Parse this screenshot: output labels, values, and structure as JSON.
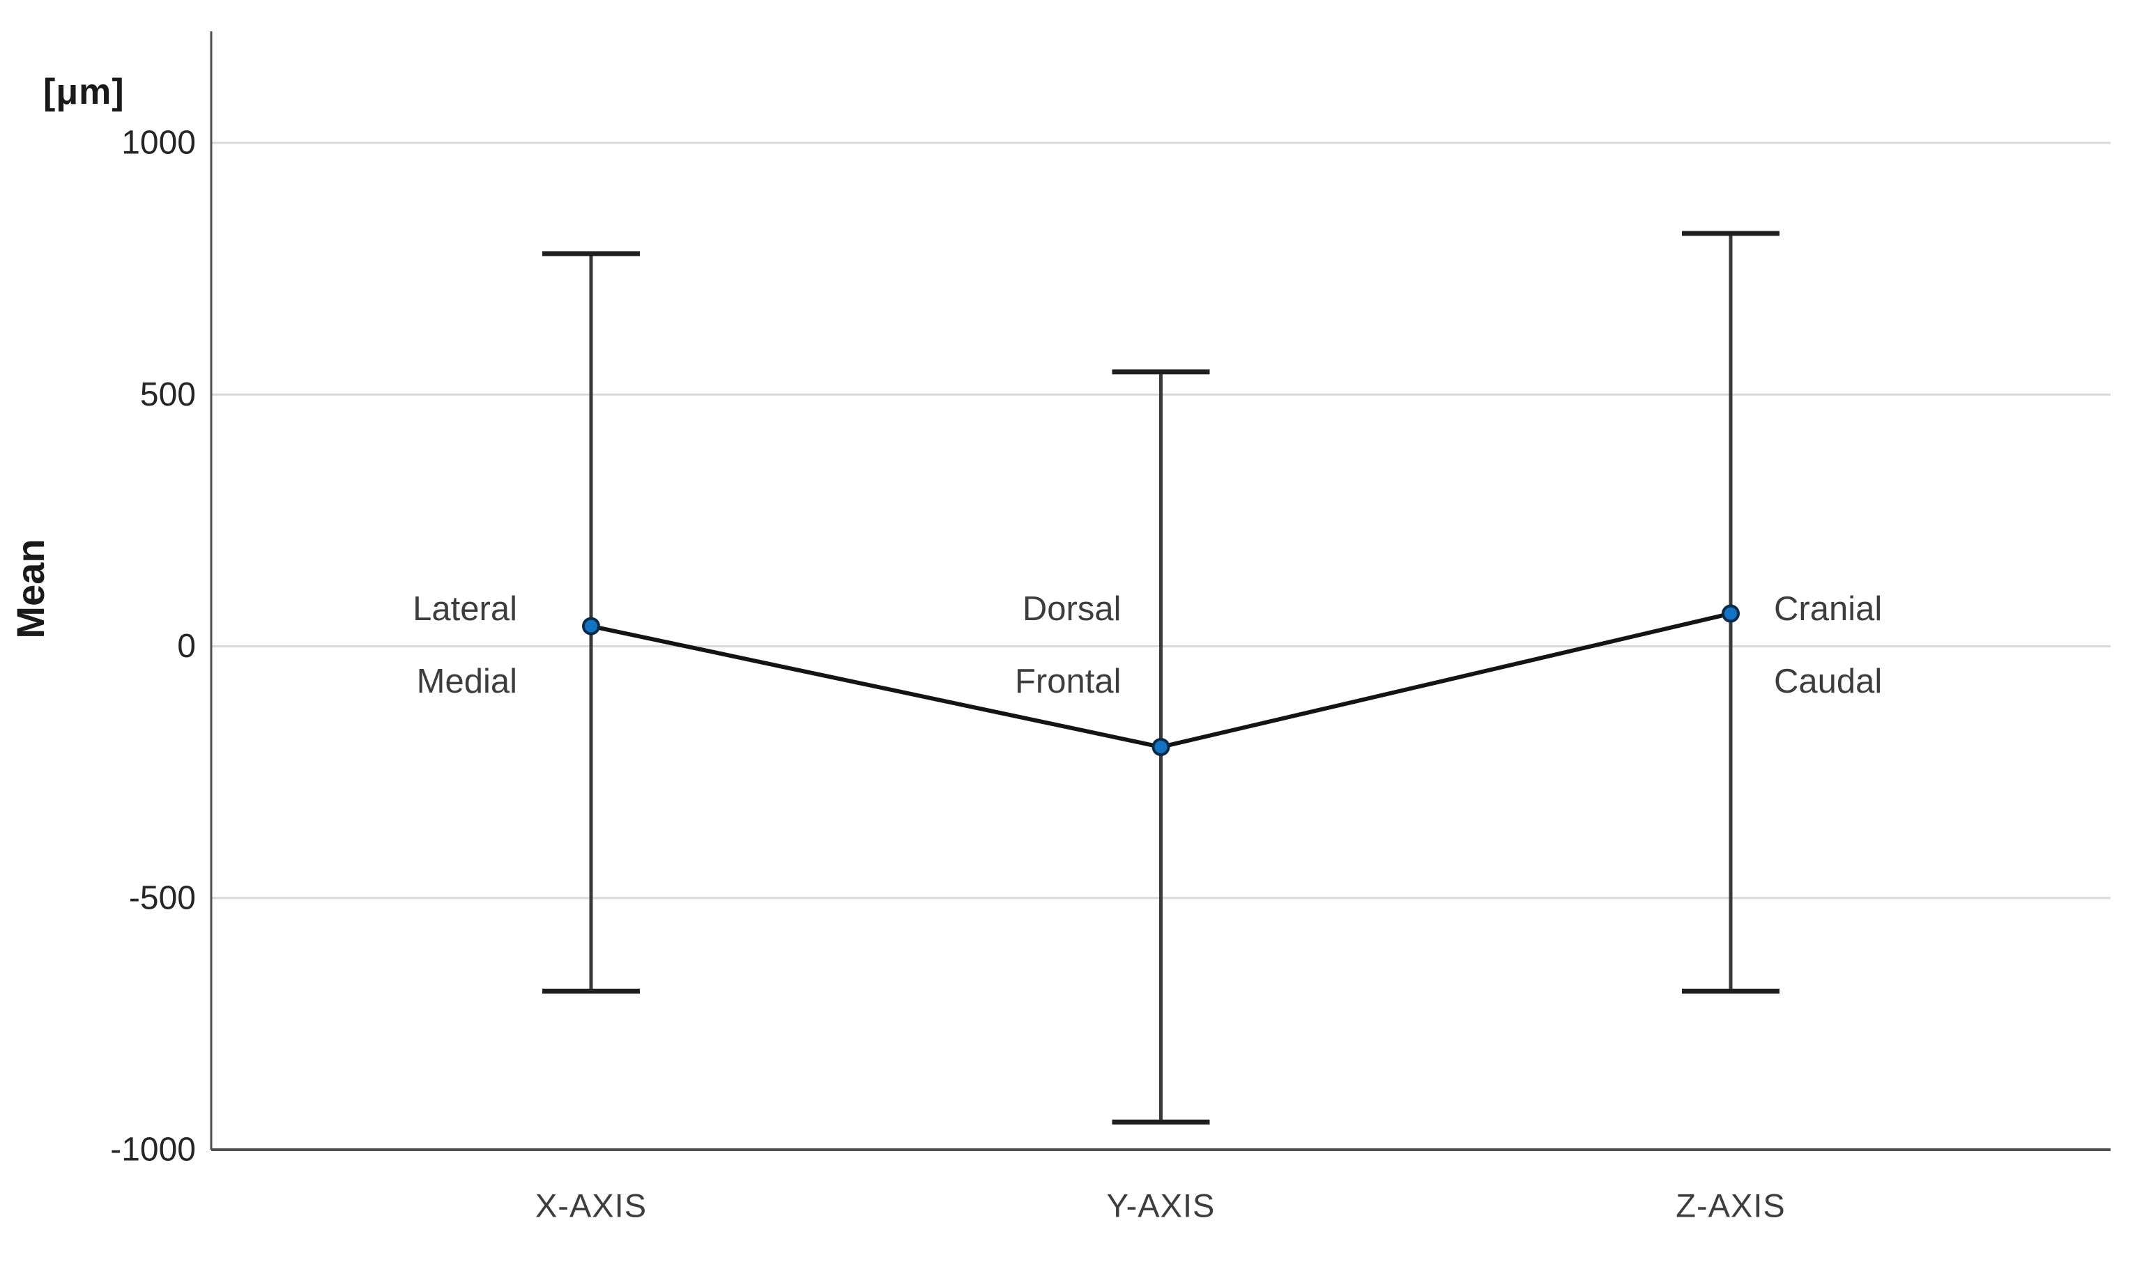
{
  "chart_data": {
    "type": "line",
    "title": "",
    "ylabel": "Mean",
    "y_unit_label": "[μm]",
    "xlabel": "",
    "categories": [
      "X-AXIS",
      "Y-AXIS",
      "Z-AXIS"
    ],
    "series": [
      {
        "means": [
          40,
          -200,
          65
        ],
        "whisker_upper": [
          780,
          545,
          820
        ],
        "whisker_lower": [
          -685,
          -945,
          -685
        ]
      }
    ],
    "yticks": [
      1000,
      500,
      0,
      -500,
      -1000
    ],
    "ylim": [
      -1000,
      1220
    ],
    "grid": true,
    "legend": false,
    "annotations": [
      {
        "category": "X-AXIS",
        "above": "Lateral",
        "below": "Medial",
        "side": "left"
      },
      {
        "category": "Y-AXIS",
        "above": "Dorsal",
        "below": "Frontal",
        "side": "left"
      },
      {
        "category": "Z-AXIS",
        "above": "Cranial",
        "below": "Caudal",
        "side": "right"
      }
    ],
    "colors": {
      "marker_fill": "#1673c1",
      "marker_stroke": "#0b2a47",
      "connector_line": "#141414",
      "whisker": "#3a3a3a",
      "whisker_cap": "#1f1f1f",
      "gridline": "#d9d9d9",
      "axis_line": "#4f4f4f",
      "tick_text": "#262626",
      "label_text": "#3d3d3d"
    }
  }
}
